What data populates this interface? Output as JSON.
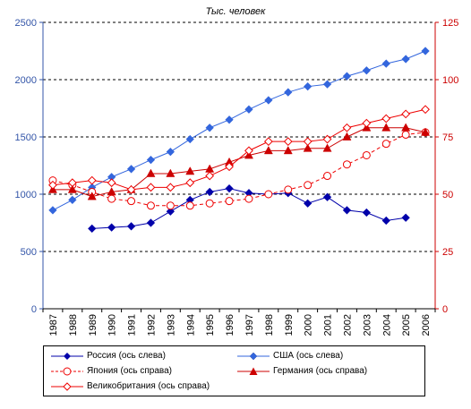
{
  "chart_data": {
    "type": "line",
    "title": "Тыс. человек",
    "categories": [
      "1987",
      "1988",
      "1989",
      "1990",
      "1991",
      "1992",
      "1993",
      "1994",
      "1995",
      "1996",
      "1997",
      "1998",
      "1999",
      "2000",
      "2001",
      "2002",
      "2003",
      "2004",
      "2005",
      "2006"
    ],
    "y_left": {
      "ylim": [
        0,
        2500
      ],
      "ticks": [
        "0",
        "500",
        "1000",
        "1500",
        "2000",
        "2500"
      ],
      "color": "#3355a8"
    },
    "y_right": {
      "ylim": [
        0,
        125
      ],
      "ticks": [
        "0",
        "25",
        "50",
        "75",
        "100",
        "125"
      ],
      "color": "#cc0000"
    },
    "grid": "dashed horizontal",
    "legend_position": "bottom",
    "series": [
      {
        "name": "Россия (ось слева)",
        "axis": "left",
        "color": "#0000aa",
        "marker": "diamond-filled",
        "dash": false,
        "values": [
          null,
          null,
          700,
          710,
          720,
          750,
          850,
          950,
          1020,
          1050,
          1010,
          1000,
          1010,
          920,
          975,
          860,
          840,
          770,
          795,
          null
        ]
      },
      {
        "name": "США (ось слева)",
        "axis": "left",
        "color": "#3366dd",
        "marker": "diamond-filled",
        "dash": false,
        "values": [
          860,
          950,
          1060,
          1150,
          1220,
          1300,
          1370,
          1480,
          1580,
          1650,
          1740,
          1820,
          1890,
          1940,
          1960,
          2030,
          2080,
          2140,
          2180,
          2250
        ]
      },
      {
        "name": "Япония (ось справа)",
        "axis": "right",
        "color": "#ee0000",
        "marker": "circle-open",
        "dash": true,
        "values": [
          56,
          54,
          51,
          48,
          47,
          45,
          45,
          45,
          46,
          47,
          48,
          50,
          52,
          54,
          58,
          63,
          67,
          72,
          76,
          77
        ]
      },
      {
        "name": "Германия (ось справа)",
        "axis": "right",
        "color": "#cc0000",
        "marker": "triangle-filled",
        "dash": false,
        "values": [
          52,
          52,
          49,
          51,
          52,
          59,
          59,
          60,
          61,
          64,
          67,
          69,
          69,
          70,
          70,
          75,
          79,
          79,
          79,
          77
        ]
      },
      {
        "name": "Великобритания (ось справа)",
        "axis": "right",
        "color": "#ee0000",
        "marker": "diamond-open",
        "dash": false,
        "values": [
          54,
          55,
          56,
          55,
          52,
          53,
          53,
          55,
          58,
          62,
          69,
          73,
          73,
          73,
          74,
          79,
          81,
          83,
          85,
          87
        ]
      }
    ]
  }
}
